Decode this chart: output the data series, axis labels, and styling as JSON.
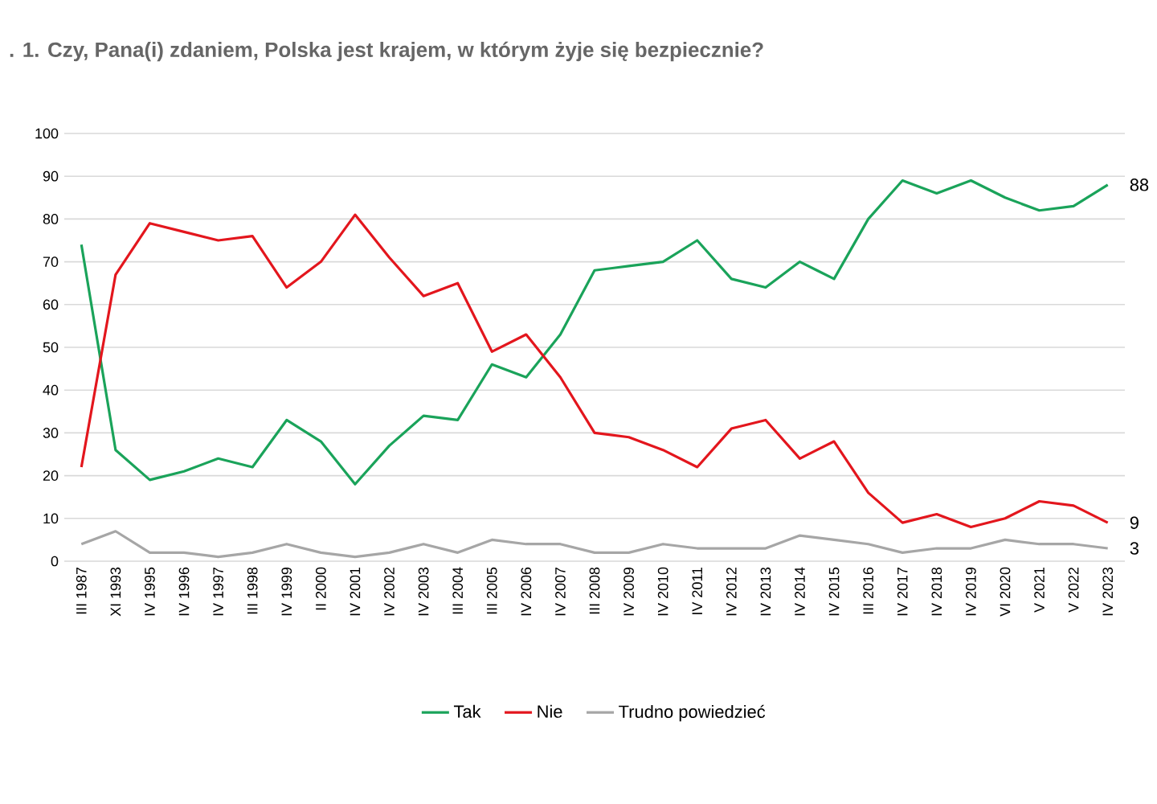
{
  "chart_data": {
    "type": "line",
    "title": ". 1.    Czy, Pana(i) zdaniem, Polska jest krajem, w którym żyje się bezpiecznie?",
    "categories": [
      "III 1987",
      "XI 1993",
      "IV 1995",
      "IV 1996",
      "IV 1997",
      "III 1998",
      "IV 1999",
      "II 2000",
      "IV 2001",
      "IV 2002",
      "IV 2003",
      "III 2004",
      "III 2005",
      "IV 2006",
      "IV 2007",
      "III 2008",
      "IV 2009",
      "IV 2010",
      "IV 2011",
      "IV 2012",
      "IV 2013",
      "IV 2014",
      "IV 2015",
      "III 2016",
      "IV 2017",
      "IV 2018",
      "IV 2019",
      "VI 2020",
      "V 2021",
      "V 2022",
      "IV 2023"
    ],
    "series": [
      {
        "name": "Tak",
        "color": "#1aa35a",
        "values": [
          74,
          26,
          19,
          21,
          24,
          22,
          33,
          28,
          18,
          27,
          34,
          33,
          46,
          43,
          53,
          68,
          69,
          70,
          75,
          66,
          64,
          70,
          66,
          80,
          89,
          86,
          89,
          85,
          82,
          83,
          88
        ],
        "value_labels": [
          null,
          null,
          null,
          null,
          null,
          null,
          null,
          null,
          null,
          null,
          null,
          null,
          null,
          null,
          null,
          null,
          null,
          null,
          null,
          null,
          null,
          null,
          null,
          null,
          null,
          null,
          null,
          null,
          null,
          null,
          "88"
        ]
      },
      {
        "name": "Nie",
        "color": "#e3161d",
        "values": [
          22,
          67,
          79,
          77,
          75,
          76,
          64,
          70,
          81,
          71,
          62,
          65,
          49,
          53,
          43,
          30,
          29,
          26,
          22,
          31,
          33,
          24,
          28,
          16,
          9,
          11,
          8,
          10,
          14,
          13,
          9
        ],
        "value_labels": [
          null,
          null,
          null,
          null,
          null,
          null,
          null,
          null,
          null,
          null,
          null,
          null,
          null,
          null,
          null,
          null,
          null,
          null,
          null,
          null,
          null,
          null,
          null,
          null,
          null,
          null,
          null,
          null,
          null,
          null,
          "9"
        ]
      },
      {
        "name": "Trudno powiedzieć",
        "color": "#a6a6a6",
        "values": [
          4,
          7,
          2,
          2,
          1,
          2,
          4,
          2,
          1,
          2,
          4,
          2,
          5,
          4,
          4,
          2,
          2,
          4,
          3,
          3,
          3,
          6,
          5,
          4,
          2,
          3,
          3,
          5,
          4,
          4,
          3
        ],
        "value_labels": [
          null,
          null,
          null,
          null,
          null,
          null,
          null,
          null,
          null,
          null,
          null,
          null,
          null,
          null,
          null,
          null,
          null,
          null,
          null,
          null,
          null,
          null,
          null,
          null,
          null,
          null,
          null,
          null,
          null,
          null,
          "3"
        ]
      }
    ],
    "ylim": [
      0,
      100
    ],
    "yticks": [
      0,
      10,
      20,
      30,
      40,
      50,
      60,
      70,
      80,
      90,
      100
    ],
    "grid": "y",
    "legend": "bottom",
    "marker": "none",
    "line_style": "solid"
  }
}
